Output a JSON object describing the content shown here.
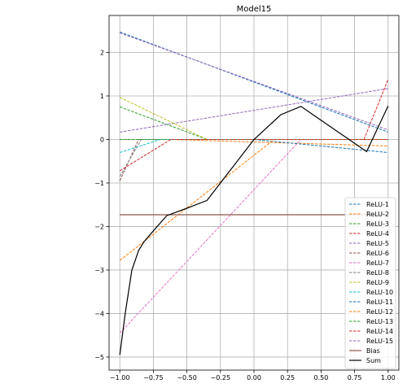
{
  "chart_data": {
    "type": "line",
    "title": "Model15",
    "xlabel": "",
    "ylabel": "",
    "xlim": [
      -1.08,
      1.08
    ],
    "ylim": [
      -5.3,
      2.85
    ],
    "xticks": [
      -1.0,
      -0.75,
      -0.5,
      -0.25,
      0.0,
      0.25,
      0.5,
      0.75,
      1.0
    ],
    "xtick_labels": [
      "−1.00",
      "−0.75",
      "−0.50",
      "−0.25",
      "0.00",
      "0.25",
      "0.50",
      "0.75",
      "1.00"
    ],
    "yticks": [
      -5,
      -4,
      -3,
      -2,
      -1,
      0,
      1,
      2
    ],
    "ytick_labels": [
      "−5",
      "−4",
      "−3",
      "−2",
      "−1",
      "0",
      "1",
      "2"
    ],
    "grid": true,
    "legend_position": "lower-right",
    "series": [
      {
        "name": "ReLU-1",
        "color": "#1f77b4",
        "dashed": true,
        "x": [
          -1.0,
          1.0
        ],
        "y": [
          2.47,
          0.17
        ]
      },
      {
        "name": "ReLU-2",
        "color": "#ff7f0e",
        "dashed": true,
        "x": [
          -1.0,
          -0.62,
          1.0
        ],
        "y": [
          0.0,
          0.0,
          -0.15
        ]
      },
      {
        "name": "ReLU-3",
        "color": "#2ca02c",
        "dashed": true,
        "x": [
          -1.0,
          -0.35,
          1.0
        ],
        "y": [
          0.75,
          0.0,
          0.0
        ]
      },
      {
        "name": "ReLU-4",
        "color": "#d62728",
        "dashed": true,
        "x": [
          -1.0,
          0.82,
          1.0
        ],
        "y": [
          0.0,
          0.0,
          1.38
        ]
      },
      {
        "name": "ReLU-5",
        "color": "#9467bd",
        "dashed": true,
        "x": [
          -1.0,
          1.0
        ],
        "y": [
          0.17,
          1.17
        ]
      },
      {
        "name": "ReLU-6",
        "color": "#8c564b",
        "dashed": true,
        "x": [
          -1.0,
          -0.86,
          1.0
        ],
        "y": [
          -0.95,
          0.0,
          0.0
        ]
      },
      {
        "name": "ReLU-7",
        "color": "#e377c2",
        "dashed": true,
        "x": [
          -1.0,
          0.35,
          1.0
        ],
        "y": [
          -4.45,
          0.0,
          0.0
        ]
      },
      {
        "name": "ReLU-8",
        "color": "#7f7f7f",
        "dashed": true,
        "x": [
          -1.0,
          -0.84,
          1.0
        ],
        "y": [
          -0.85,
          0.0,
          0.0
        ]
      },
      {
        "name": "ReLU-9",
        "color": "#bcbd22",
        "dashed": true,
        "x": [
          -1.0,
          -0.35,
          1.0
        ],
        "y": [
          0.97,
          0.0,
          0.0
        ]
      },
      {
        "name": "ReLU-10",
        "color": "#17becf",
        "dashed": true,
        "x": [
          -1.0,
          -0.7,
          1.0
        ],
        "y": [
          -0.3,
          0.0,
          0.0
        ]
      },
      {
        "name": "ReLU-11",
        "color": "#1f77b4",
        "dashed": true,
        "x": [
          -1.0,
          0.0,
          1.0
        ],
        "y": [
          0.0,
          0.0,
          -0.3
        ]
      },
      {
        "name": "ReLU-12",
        "color": "#ff7f0e",
        "dashed": true,
        "x": [
          -1.0,
          0.15,
          1.0
        ],
        "y": [
          -2.78,
          0.0,
          0.0
        ]
      },
      {
        "name": "ReLU-13",
        "color": "#2ca02c",
        "dashed": true,
        "x": [
          -1.0,
          1.0
        ],
        "y": [
          0.0,
          0.0
        ]
      },
      {
        "name": "ReLU-14",
        "color": "#d62728",
        "dashed": true,
        "x": [
          -1.0,
          -0.62,
          1.0
        ],
        "y": [
          -0.72,
          0.0,
          0.0
        ]
      },
      {
        "name": "ReLU-15",
        "color": "#9467bd",
        "dashed": true,
        "x": [
          -1.0,
          1.0
        ],
        "y": [
          2.45,
          0.22
        ]
      },
      {
        "name": "Bias",
        "color": "#8c564b",
        "dashed": false,
        "x": [
          -1.0,
          1.0
        ],
        "y": [
          -1.73,
          -1.73
        ]
      },
      {
        "name": "Sum",
        "color": "#000000",
        "dashed": false,
        "x": [
          -1.0,
          -0.96,
          -0.91,
          -0.86,
          -0.82,
          -0.75,
          -0.65,
          -0.5,
          -0.35,
          0.0,
          0.2,
          0.35,
          0.84,
          1.0
        ],
        "y": [
          -4.95,
          -4.0,
          -3.0,
          -2.55,
          -2.35,
          -2.1,
          -1.75,
          -1.58,
          -1.4,
          0.0,
          0.57,
          0.76,
          -0.28,
          0.77
        ]
      }
    ]
  }
}
